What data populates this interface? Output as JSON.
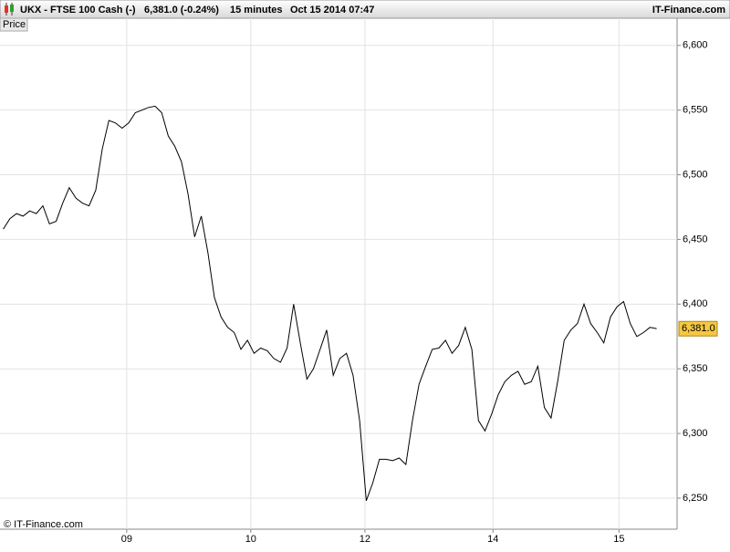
{
  "header": {
    "symbol": "UKX - FTSE 100 Cash (-)",
    "quote": "6,381.0 (-0.24%)",
    "interval": "15 minutes",
    "timestamp": "Oct 15 2014 07:47",
    "brand": "IT-Finance.com"
  },
  "chart_data": {
    "type": "line",
    "series": [
      {
        "name": "Price",
        "color": "#000000",
        "values": [
          6458,
          6466,
          6470,
          6468,
          6472,
          6470,
          6476,
          6462,
          6464,
          6478,
          6490,
          6482,
          6478,
          6476,
          6488,
          6520,
          6542,
          6540,
          6536,
          6540,
          6548,
          6550,
          6552,
          6553,
          6548,
          6530,
          6522,
          6510,
          6485,
          6452,
          6468,
          6440,
          6405,
          6390,
          6382,
          6378,
          6365,
          6372,
          6362,
          6366,
          6364,
          6358,
          6355,
          6366,
          6400,
          6370,
          6342,
          6350,
          6365,
          6380,
          6345,
          6358,
          6362,
          6345,
          6310,
          6248,
          6262,
          6280,
          6280,
          6279,
          6281,
          6276,
          6310,
          6338,
          6352,
          6365,
          6366,
          6372,
          6362,
          6368,
          6382,
          6365,
          6310,
          6302,
          6315,
          6330,
          6340,
          6345,
          6348,
          6338,
          6340,
          6352,
          6320,
          6312,
          6340,
          6372,
          6380,
          6385,
          6400,
          6385,
          6378,
          6370,
          6390,
          6398,
          6402,
          6385,
          6375,
          6378,
          6382,
          6381
        ]
      }
    ],
    "price_tag": "6,381.0",
    "ylim": [
      6226,
      6621
    ],
    "yticks": [
      {
        "value": 6250,
        "label": "6,250"
      },
      {
        "value": 6300,
        "label": "6,300"
      },
      {
        "value": 6350,
        "label": "6,350"
      },
      {
        "value": 6400,
        "label": "6,400"
      },
      {
        "value": 6450,
        "label": "6,450"
      },
      {
        "value": 6500,
        "label": "6,500"
      },
      {
        "value": 6550,
        "label": "6,550"
      },
      {
        "value": 6600,
        "label": "6,600"
      }
    ],
    "xlim": [
      -0.5,
      102.1
    ],
    "xticks": [
      {
        "value": 18.7,
        "label": "09"
      },
      {
        "value": 37.5,
        "label": "10"
      },
      {
        "value": 54.8,
        "label": "12"
      },
      {
        "value": 74.2,
        "label": "14"
      },
      {
        "value": 93.3,
        "label": "15"
      }
    ],
    "grid": true,
    "copyright": "© IT-Finance.com"
  }
}
